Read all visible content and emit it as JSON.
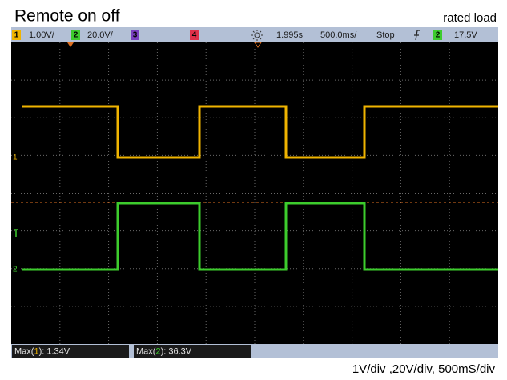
{
  "title": "Remote on off",
  "subtitle": "rated load",
  "status_bar": {
    "ch1_label": "1",
    "ch1_scale": "1.00V/",
    "ch2_label": "2",
    "ch2_scale": "20.0V/",
    "ch3_label": "3",
    "ch4_label": "4",
    "time_offset": "1.995s",
    "time_scale": "500.0ms/",
    "run_state": "Stop",
    "trigger_source": "2",
    "trigger_level": "17.5V"
  },
  "markers": [
    "1",
    "2"
  ],
  "measurements": [
    {
      "prefix": "Max(",
      "channel": "1",
      "suffix": "): 1.34V"
    },
    {
      "prefix": "Max(",
      "channel": "2",
      "suffix": "): 36.3V"
    }
  ],
  "caption": "1V/div ,20V/div, 500mS/div"
}
